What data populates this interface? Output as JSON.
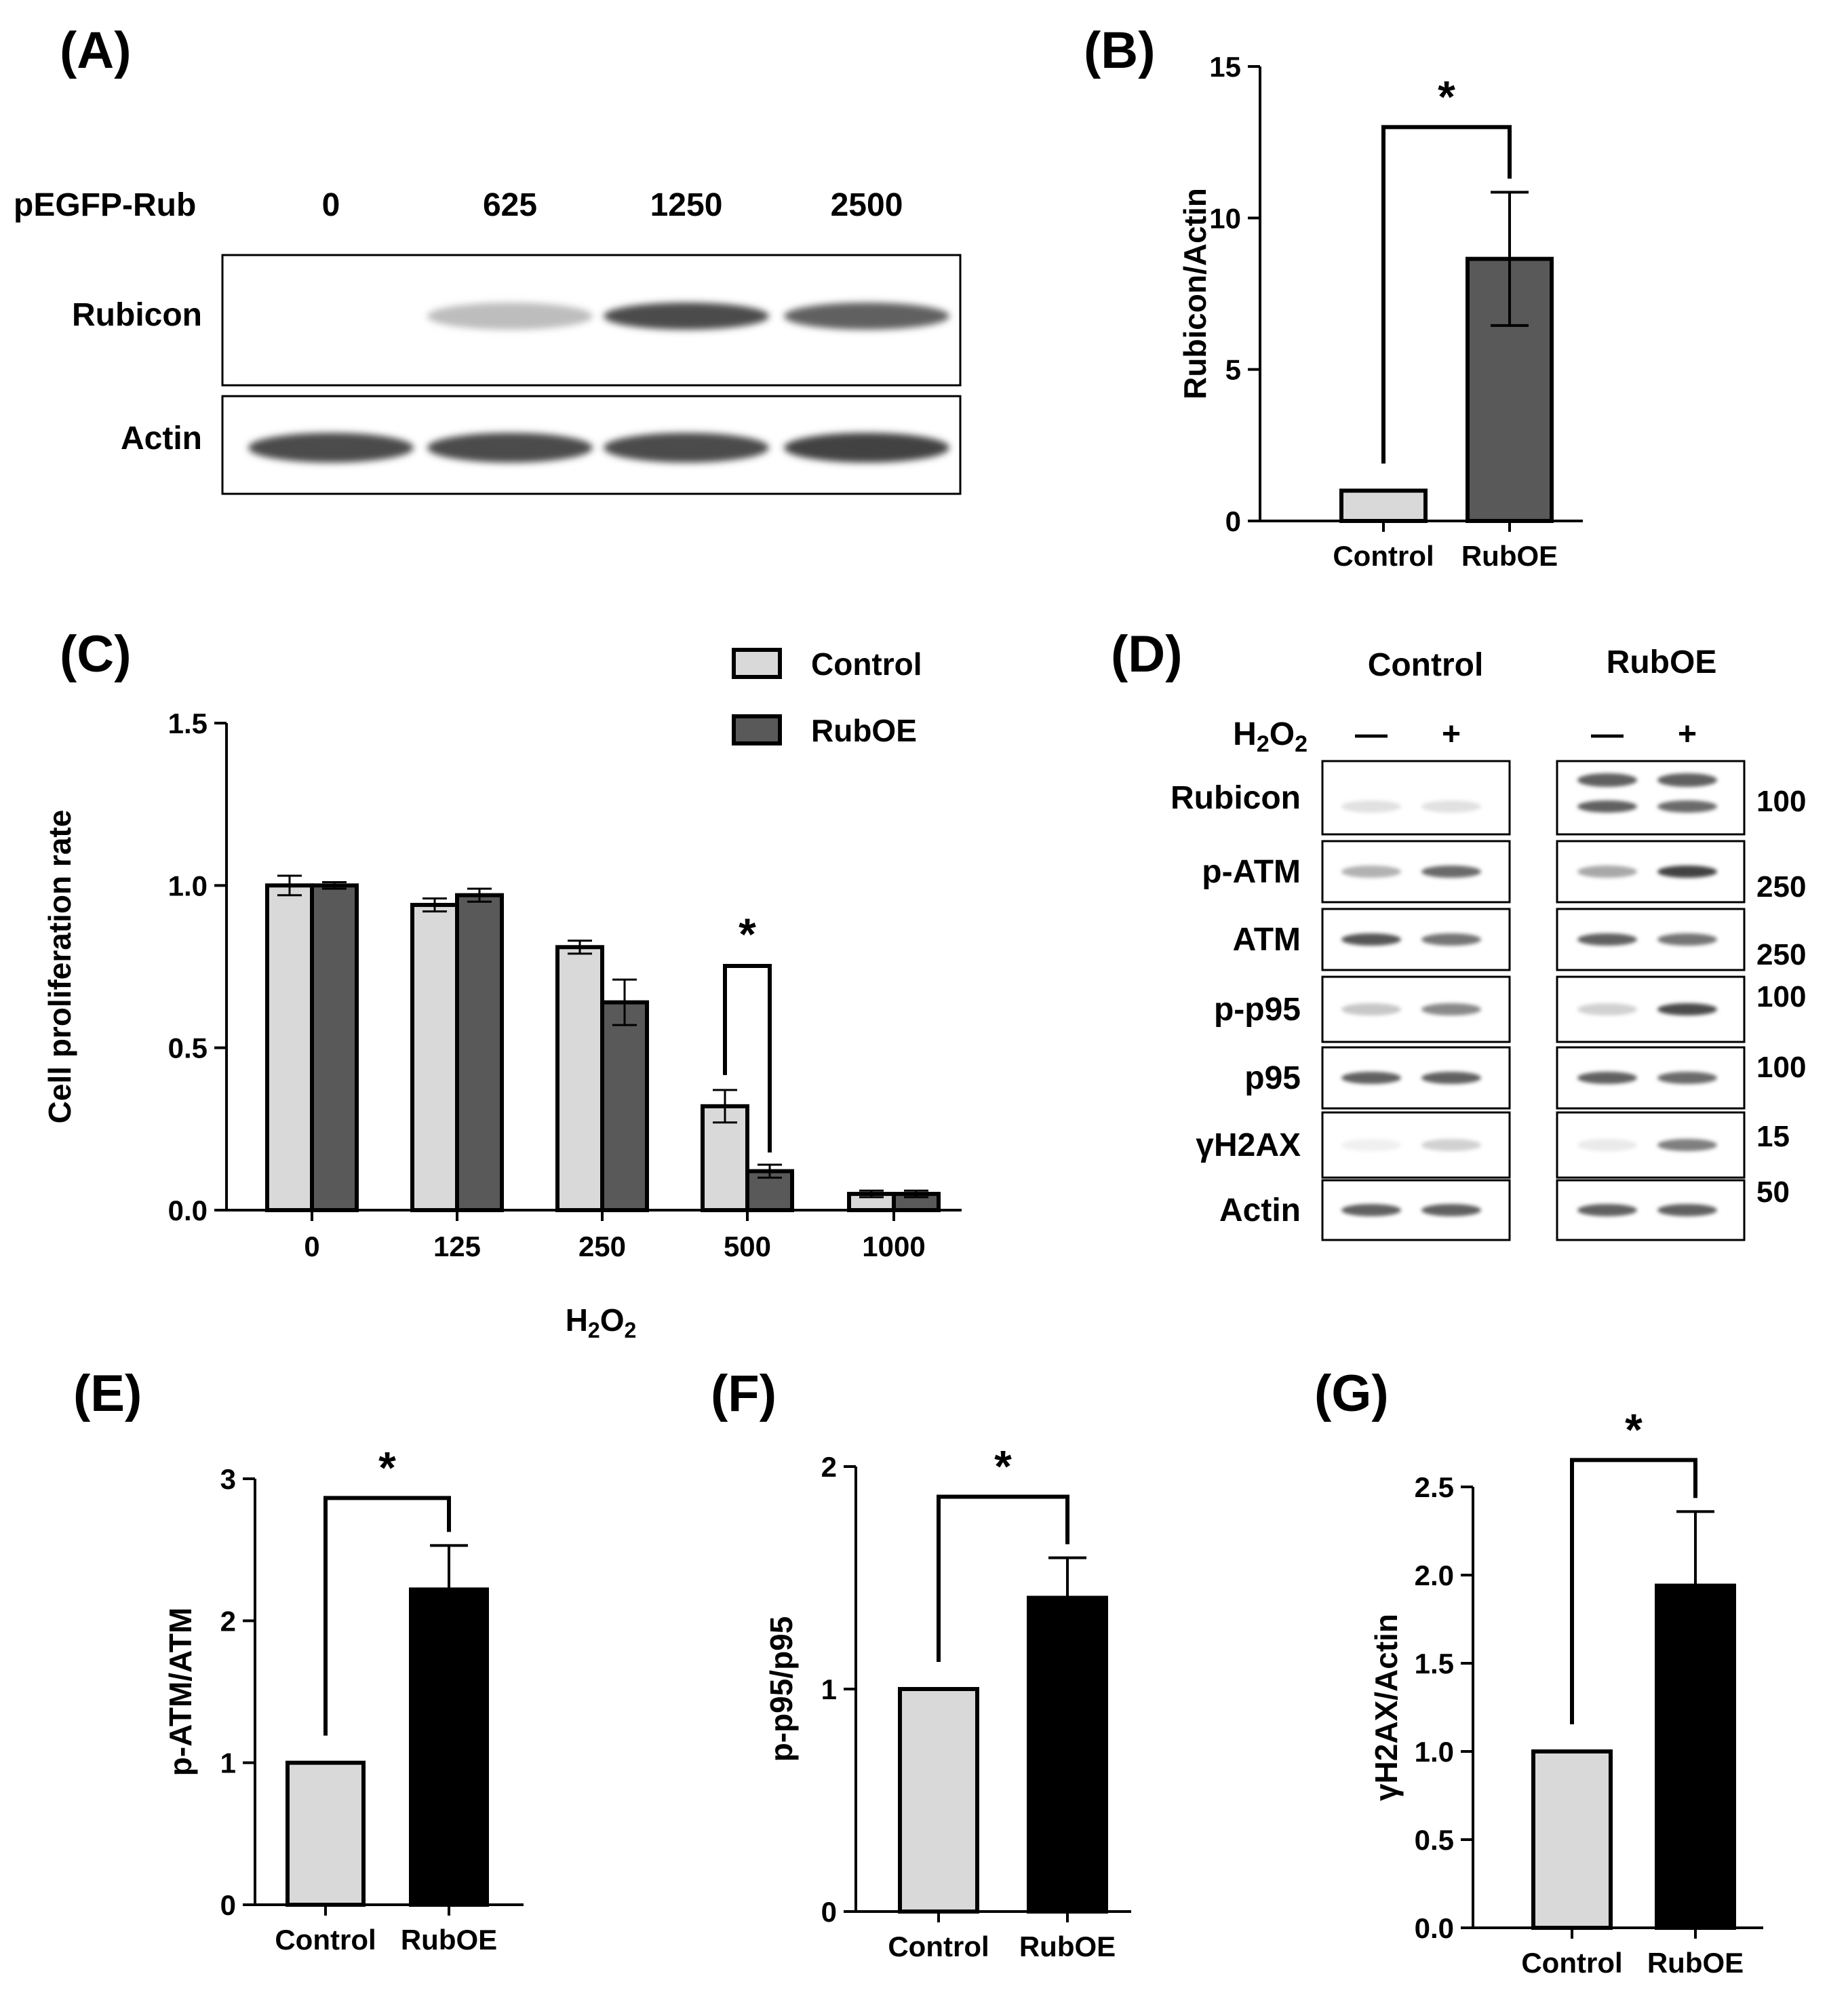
{
  "panels": {
    "A": {
      "label": "(A)",
      "header_label": "pEGFP-Rub",
      "doses": [
        "0",
        "625",
        "1250",
        "2500"
      ],
      "rows": [
        {
          "label": "Rubicon",
          "intensity": [
            0.0,
            0.3,
            0.85,
            0.75
          ]
        },
        {
          "label": "Actin",
          "intensity": [
            0.85,
            0.85,
            0.85,
            0.9
          ]
        }
      ]
    },
    "B": {
      "label": "(B)"
    },
    "C": {
      "label": "(C)"
    },
    "D": {
      "label": "(D)",
      "groups": [
        "Control",
        "RubOE"
      ],
      "treatment_label": "H2O2",
      "treatment_signs": [
        "—",
        "+",
        "—",
        "+"
      ],
      "rows": [
        {
          "label": "Rubicon",
          "mw": "100",
          "intensity": [
            0.12,
            0.12,
            0.75,
            0.7
          ]
        },
        {
          "label": "p-ATM",
          "mw": "250",
          "intensity": [
            0.35,
            0.7,
            0.4,
            0.9
          ]
        },
        {
          "label": "ATM",
          "mw": "250",
          "intensity": [
            0.8,
            0.65,
            0.75,
            0.65
          ]
        },
        {
          "label": "p-p95",
          "mw": "100",
          "intensity": [
            0.25,
            0.55,
            0.2,
            0.85
          ]
        },
        {
          "label": "p95",
          "mw": "100",
          "intensity": [
            0.75,
            0.75,
            0.75,
            0.7
          ]
        },
        {
          "label": "γH2AX",
          "mw": "15",
          "intensity": [
            0.05,
            0.2,
            0.08,
            0.6
          ]
        },
        {
          "label": "Actin",
          "mw": "50",
          "intensity": [
            0.75,
            0.75,
            0.75,
            0.75
          ]
        }
      ]
    },
    "E": {
      "label": "(E)"
    },
    "F": {
      "label": "(F)"
    },
    "G": {
      "label": "(G)"
    }
  },
  "colors": {
    "control": "#d9d9d9",
    "rubOE_B_C": "#595959",
    "rubOE_EFG": "#000000"
  },
  "chart_data": [
    {
      "panel": "B",
      "type": "bar",
      "categories": [
        "Control",
        "RubOE"
      ],
      "values": [
        1.0,
        8.65
      ],
      "errors": [
        0,
        2.2
      ],
      "ylabel": "Rubicon/Actin",
      "ylim": [
        0,
        15
      ],
      "yticks": [
        0,
        5,
        10,
        15
      ],
      "ytick_labels": [
        "0",
        "5",
        "10",
        "15"
      ],
      "significance": "*",
      "grid": false
    },
    {
      "panel": "C",
      "type": "bar",
      "categories": [
        "0",
        "125",
        "250",
        "500",
        "1000"
      ],
      "series": [
        {
          "name": "Control",
          "values": [
            1.0,
            0.94,
            0.81,
            0.32,
            0.05
          ],
          "errors": [
            0.03,
            0.02,
            0.02,
            0.05,
            0.01
          ]
        },
        {
          "name": "RubOE",
          "values": [
            1.0,
            0.97,
            0.64,
            0.12,
            0.05
          ],
          "errors": [
            0.01,
            0.02,
            0.07,
            0.02,
            0.01
          ]
        }
      ],
      "xlabel": "H2O2",
      "ylabel": "Cell proliferation rate",
      "ylim": [
        0,
        1.5
      ],
      "yticks": [
        0,
        0.5,
        1.0,
        1.5
      ],
      "ytick_labels": [
        "0.0",
        "0.5",
        "1.0",
        "1.5"
      ],
      "significance": {
        "category": "500",
        "mark": "*"
      },
      "legend": "top-right",
      "grid": false
    },
    {
      "panel": "E",
      "type": "bar",
      "categories": [
        "Control",
        "RubOE"
      ],
      "values": [
        1.0,
        2.22
      ],
      "errors": [
        0,
        0.31
      ],
      "ylabel": "p-ATM/ATM",
      "ylim": [
        0,
        3
      ],
      "yticks": [
        0,
        1,
        2,
        3
      ],
      "ytick_labels": [
        "0",
        "1",
        "2",
        "3"
      ],
      "significance": "*",
      "grid": false
    },
    {
      "panel": "F",
      "type": "bar",
      "categories": [
        "Control",
        "RubOE"
      ],
      "values": [
        1.0,
        1.41
      ],
      "errors": [
        0,
        0.18
      ],
      "ylabel": "p-p95/p95",
      "ylim": [
        0,
        2
      ],
      "yticks": [
        0,
        1,
        2
      ],
      "ytick_labels": [
        "0",
        "1",
        "2"
      ],
      "significance": "*",
      "grid": false
    },
    {
      "panel": "G",
      "type": "bar",
      "categories": [
        "Control",
        "RubOE"
      ],
      "values": [
        1.0,
        1.94
      ],
      "errors": [
        0,
        0.42
      ],
      "ylabel": "γH2AX/Actin",
      "ylim": [
        0,
        2.5
      ],
      "yticks": [
        0,
        0.5,
        1.0,
        1.5,
        2.0,
        2.5
      ],
      "ytick_labels": [
        "0.0",
        "0.5",
        "1.0",
        "1.5",
        "2.0",
        "2.5"
      ],
      "significance": "*",
      "grid": false
    }
  ]
}
